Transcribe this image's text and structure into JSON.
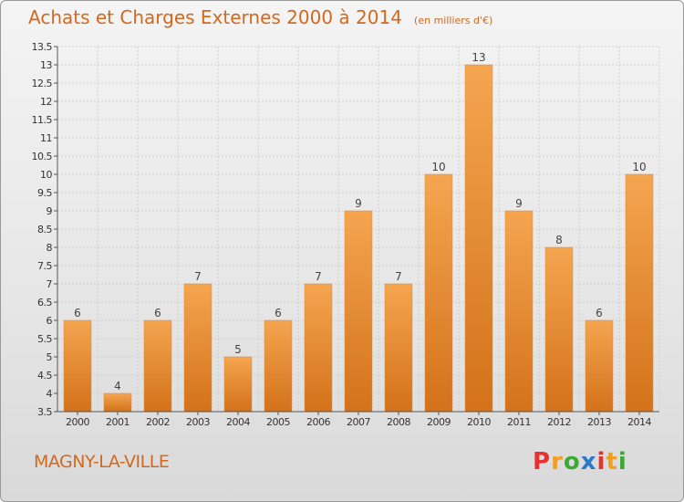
{
  "chart_data": {
    "type": "bar",
    "title": "Achats et Charges Externes 2000 à 2014",
    "unit": "(en milliers d'€)",
    "categories": [
      "2000",
      "2001",
      "2002",
      "2003",
      "2004",
      "2005",
      "2006",
      "2007",
      "2008",
      "2009",
      "2010",
      "2011",
      "2012",
      "2013",
      "2014"
    ],
    "values": [
      6,
      4,
      6,
      7,
      5,
      6,
      7,
      9,
      7,
      10,
      13,
      9,
      8,
      6,
      10
    ],
    "value_labels": [
      "6",
      "4",
      "6",
      "7",
      "5",
      "6",
      "7",
      "9",
      "7",
      "10",
      "13",
      "9",
      "8",
      "6",
      "10"
    ],
    "ylim": [
      3.5,
      13.5
    ],
    "yticks": [
      3.5,
      4,
      4.5,
      5,
      5.5,
      6,
      6.5,
      7,
      7.5,
      8,
      8.5,
      9,
      9.5,
      10,
      10.5,
      11,
      11.5,
      12,
      12.5,
      13,
      13.5
    ],
    "ytick_labels": [
      "3.5",
      "4",
      "4.5",
      "5",
      "5.5",
      "6",
      "6.5",
      "7",
      "7.5",
      "8",
      "8.5",
      "9",
      "9.5",
      "10",
      "10.5",
      "11",
      "11.5",
      "12",
      "12.5",
      "13",
      "13.5"
    ],
    "grid": true,
    "bar_color": "#f39a3c",
    "bar_color_dark": "#d06d15"
  },
  "footer": {
    "commune": "MAGNY-LA-VILLE",
    "logo_letters": [
      "P",
      "r",
      "o",
      "x",
      "i",
      "t",
      "i"
    ],
    "logo_colors": [
      "#e8312f",
      "#f0a020",
      "#3aaa35",
      "#2a7ac8",
      "#e8312f",
      "#f0a020",
      "#3aaa35"
    ]
  }
}
